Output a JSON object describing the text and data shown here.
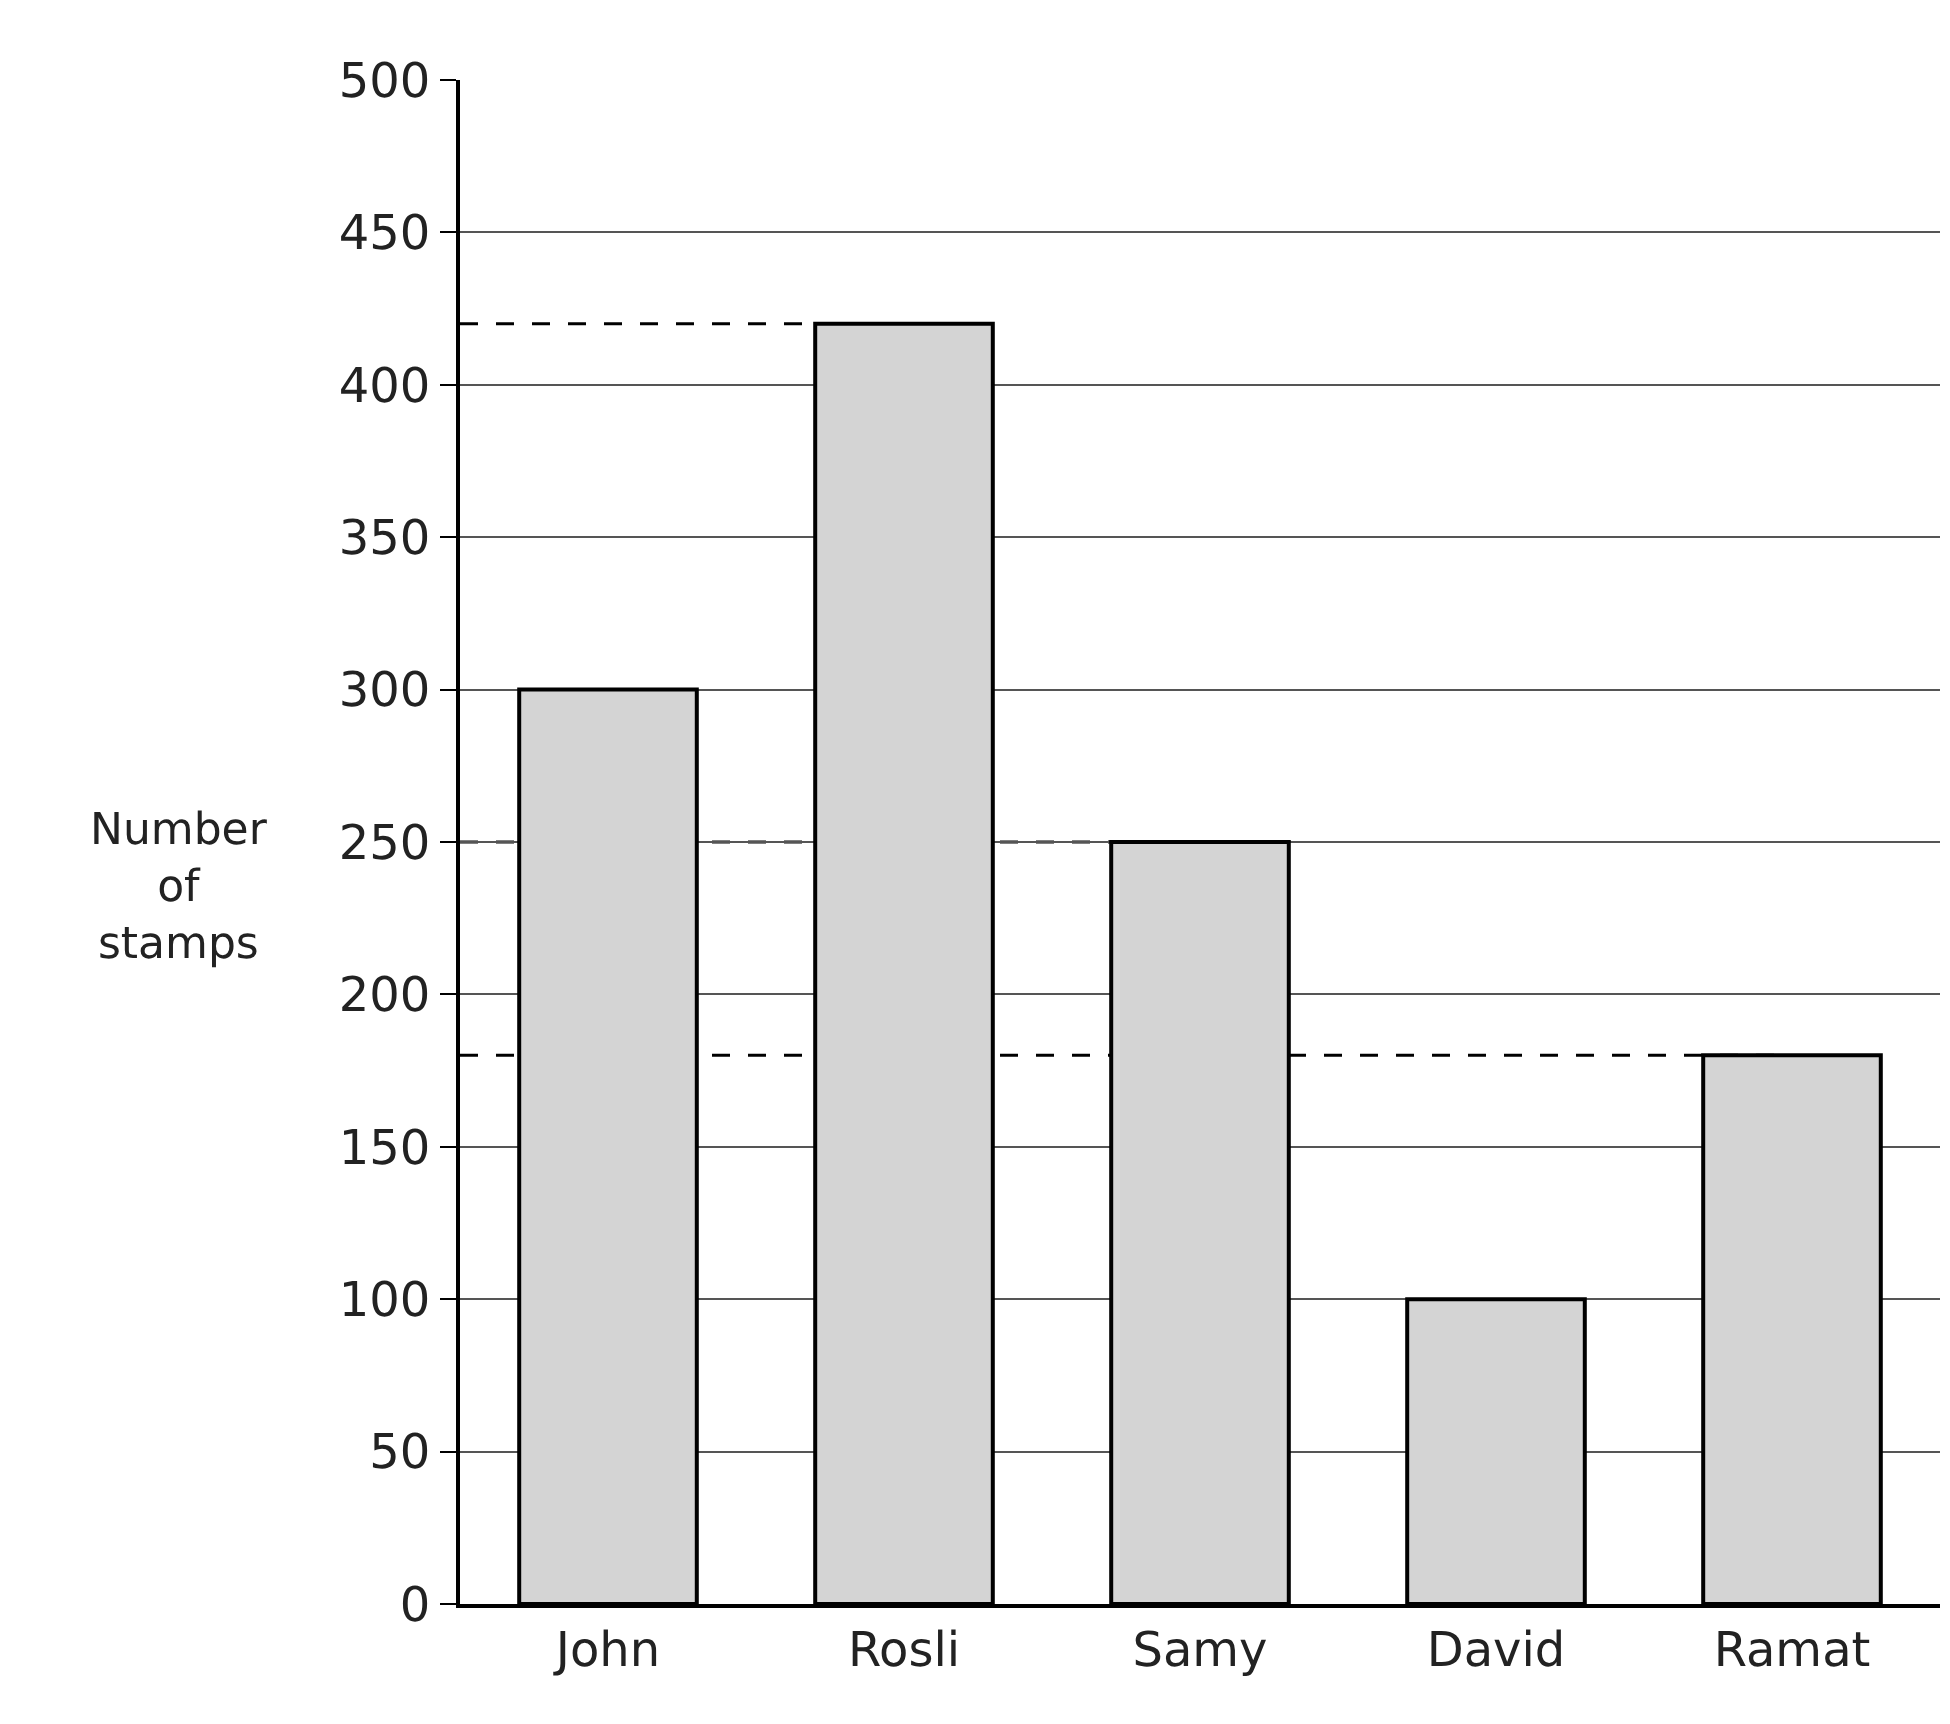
{
  "chart_data": {
    "type": "bar",
    "ylabel": "Number of stamps",
    "categories": [
      "John",
      "Rosli",
      "Samy",
      "David",
      "Ramat"
    ],
    "values": [
      300,
      420,
      250,
      100,
      180
    ],
    "color": "#d4d4d4",
    "ylim": [
      0,
      500
    ],
    "yticks": [
      0,
      50,
      100,
      150,
      200,
      250,
      300,
      350,
      400,
      450,
      500
    ],
    "grid": "y",
    "legend": false,
    "ref_lines": [
      {
        "axis": "y",
        "value": 420,
        "line_style": "dashed",
        "color": "#000000"
      },
      {
        "axis": "y",
        "value": 250,
        "line_style": "dashed",
        "color": "#000000"
      },
      {
        "axis": "y",
        "value": 180,
        "line_style": "dashed",
        "color": "#000000"
      }
    ]
  }
}
